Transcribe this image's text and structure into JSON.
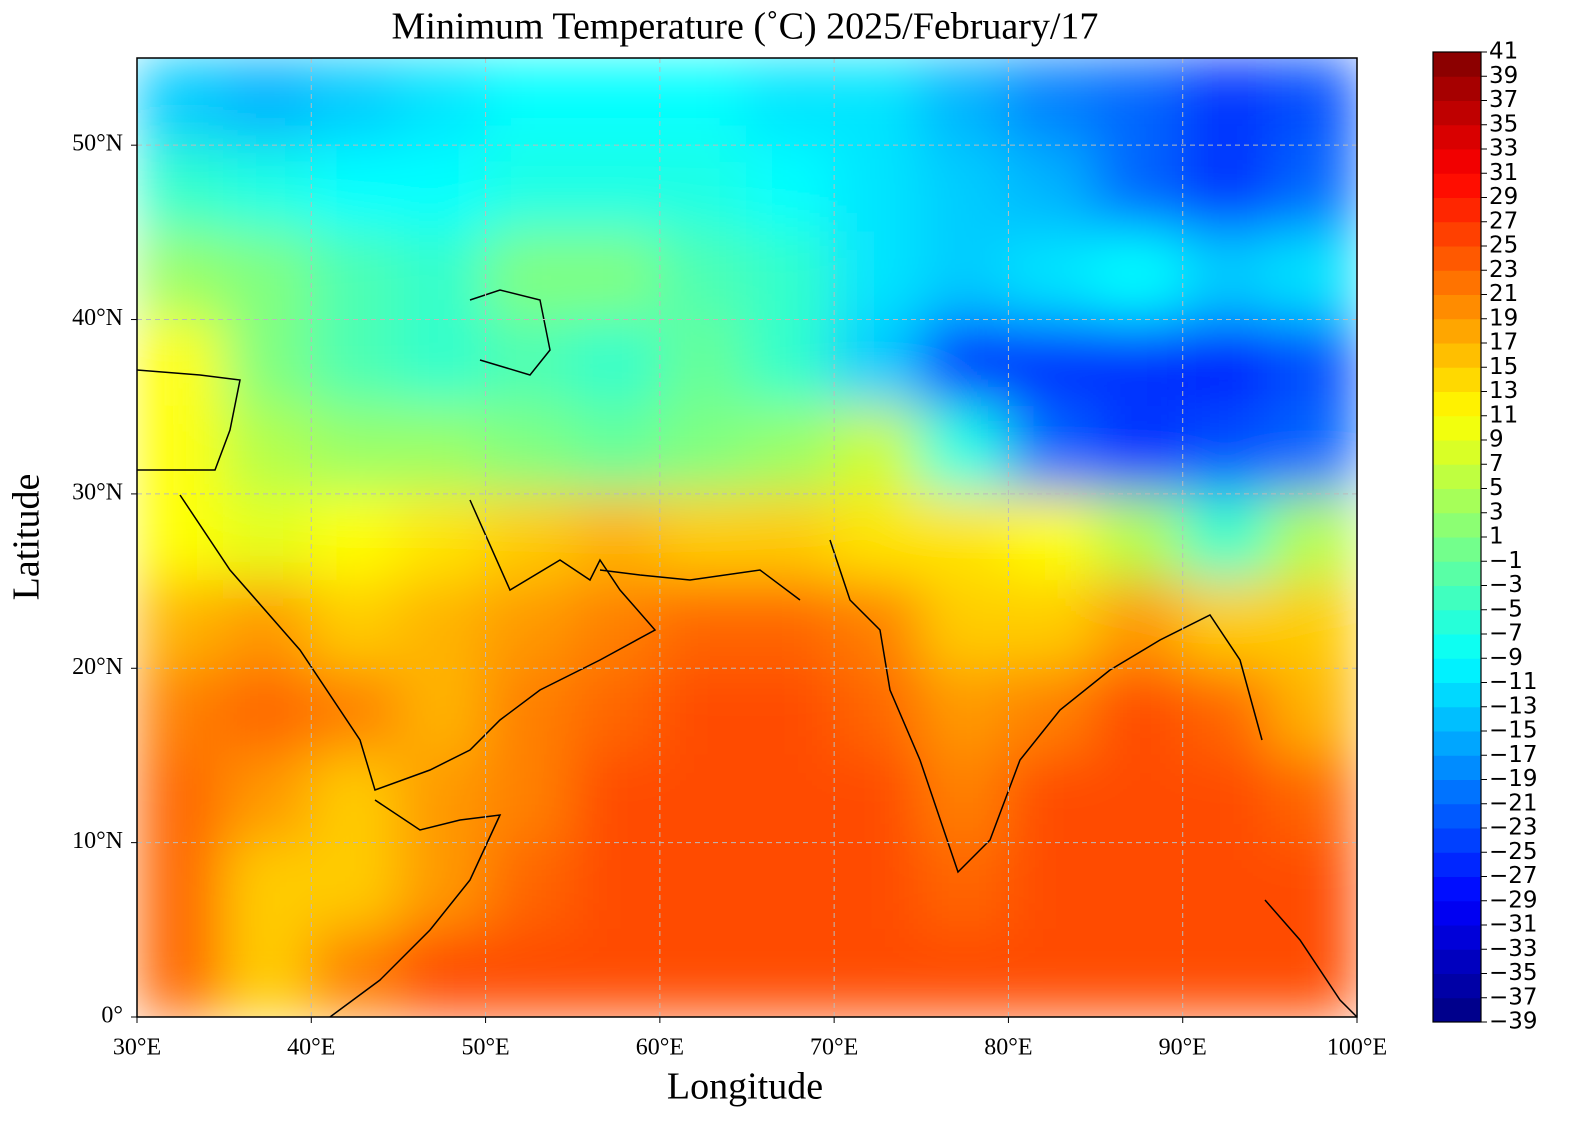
{
  "chart_data": {
    "type": "contour_map",
    "title": "Minimum Temperature (˚C)  2025/February/17",
    "x_label": "Longitude",
    "y_label": "Latitude",
    "xlim": [
      30,
      100
    ],
    "ylim": [
      0,
      55
    ],
    "xticks": [
      {
        "value": 30,
        "label": "30°E"
      },
      {
        "value": 40,
        "label": "40°E"
      },
      {
        "value": 50,
        "label": "50°E"
      },
      {
        "value": 60,
        "label": "60°E"
      },
      {
        "value": 70,
        "label": "70°E"
      },
      {
        "value": 80,
        "label": "80°E"
      },
      {
        "value": 90,
        "label": "90°E"
      },
      {
        "value": 100,
        "label": "100°E"
      }
    ],
    "yticks": [
      {
        "value": 0,
        "label": "0°"
      },
      {
        "value": 10,
        "label": "10°N"
      },
      {
        "value": 20,
        "label": "20°N"
      },
      {
        "value": 30,
        "label": "30°N"
      },
      {
        "value": 40,
        "label": "40°N"
      },
      {
        "value": 50,
        "label": "50°N"
      }
    ],
    "grid": true,
    "colormap": "jet",
    "colorbar_lim": [
      -39,
      41
    ],
    "colorbar_ticks": [
      {
        "value": -39,
        "label": "−39"
      },
      {
        "value": -37,
        "label": "−37"
      },
      {
        "value": -35,
        "label": "−35"
      },
      {
        "value": -33,
        "label": "−33"
      },
      {
        "value": -31,
        "label": "−31"
      },
      {
        "value": -29,
        "label": "−29"
      },
      {
        "value": -27,
        "label": "−27"
      },
      {
        "value": -25,
        "label": "−25"
      },
      {
        "value": -23,
        "label": "−23"
      },
      {
        "value": -21,
        "label": "−21"
      },
      {
        "value": -19,
        "label": "−19"
      },
      {
        "value": -17,
        "label": "−17"
      },
      {
        "value": -15,
        "label": "−15"
      },
      {
        "value": -13,
        "label": "−13"
      },
      {
        "value": -11,
        "label": "−11"
      },
      {
        "value": -9,
        "label": "−9"
      },
      {
        "value": -7,
        "label": "−7"
      },
      {
        "value": -5,
        "label": "−5"
      },
      {
        "value": -3,
        "label": "−3"
      },
      {
        "value": -1,
        "label": "−1"
      },
      1,
      3,
      5,
      7,
      9,
      11,
      13,
      15,
      17,
      19,
      21,
      23,
      25,
      27,
      29,
      31,
      33,
      35,
      37,
      39,
      41
    ],
    "field": {
      "values": [
        [
          -13,
          -15,
          -13,
          -11,
          -9,
          -9,
          -9,
          -11,
          -11,
          -15,
          -19,
          -21,
          -25,
          -23
        ],
        [
          -5,
          -7,
          -9,
          -9,
          -7,
          -7,
          -7,
          -9,
          -11,
          -13,
          -15,
          -21,
          -25,
          -21
        ],
        [
          3,
          1,
          -3,
          -5,
          1,
          1,
          -3,
          -5,
          -11,
          -13,
          -11,
          -9,
          -13,
          -11
        ],
        [
          11,
          1,
          -3,
          -5,
          -3,
          -5,
          -1,
          -5,
          -13,
          -25,
          -25,
          -25,
          -27,
          -23
        ],
        [
          11,
          5,
          3,
          3,
          1,
          -1,
          1,
          3,
          7,
          -7,
          -21,
          -25,
          -23,
          -21
        ],
        [
          11,
          9,
          11,
          13,
          15,
          17,
          15,
          15,
          13,
          13,
          11,
          5,
          -5,
          5
        ],
        [
          17,
          19,
          15,
          17,
          19,
          21,
          23,
          23,
          21,
          15,
          15,
          19,
          15,
          15
        ],
        [
          21,
          23,
          21,
          17,
          21,
          23,
          25,
          25,
          23,
          19,
          21,
          25,
          23,
          17
        ],
        [
          23,
          19,
          15,
          19,
          21,
          25,
          25,
          25,
          25,
          21,
          25,
          25,
          25,
          23
        ],
        [
          23,
          15,
          15,
          19,
          23,
          25,
          25,
          25,
          25,
          23,
          25,
          25,
          25,
          25
        ],
        [
          23,
          15,
          21,
          25,
          25,
          25,
          25,
          25,
          25,
          25,
          25,
          25,
          25,
          25
        ]
      ]
    }
  }
}
